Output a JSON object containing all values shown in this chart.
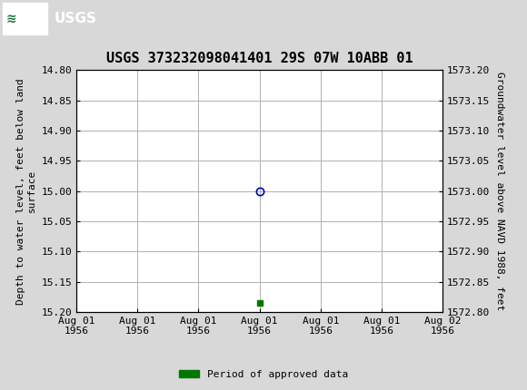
{
  "title": "USGS 373232098041401 29S 07W 10ABB 01",
  "xlabel_dates": [
    "Aug 01\n1956",
    "Aug 01\n1956",
    "Aug 01\n1956",
    "Aug 01\n1956",
    "Aug 01\n1956",
    "Aug 01\n1956",
    "Aug 02\n1956"
  ],
  "ylim_left": [
    15.2,
    14.8
  ],
  "ylim_right": [
    1572.8,
    1573.2
  ],
  "yticks_left": [
    14.8,
    14.85,
    14.9,
    14.95,
    15.0,
    15.05,
    15.1,
    15.15,
    15.2
  ],
  "yticks_right": [
    1572.8,
    1572.85,
    1572.9,
    1572.95,
    1573.0,
    1573.05,
    1573.1,
    1573.15,
    1573.2
  ],
  "ylabel_left": "Depth to water level, feet below land\nsurface",
  "ylabel_right": "Groundwater level above NAVD 1988, feet",
  "data_point_x": 3.0,
  "data_point_y_circle": 15.0,
  "data_point_y_square": 15.185,
  "circle_color": "#0000bb",
  "square_color": "#007700",
  "legend_label": "Period of approved data",
  "legend_color": "#007700",
  "header_color": "#1a7040",
  "background_color": "#d8d8d8",
  "plot_bg_color": "#ffffff",
  "grid_color": "#b0b0b0",
  "title_fontsize": 11,
  "axis_label_fontsize": 8,
  "tick_fontsize": 8,
  "num_xticks": 7,
  "xmin": 0,
  "xmax": 6
}
